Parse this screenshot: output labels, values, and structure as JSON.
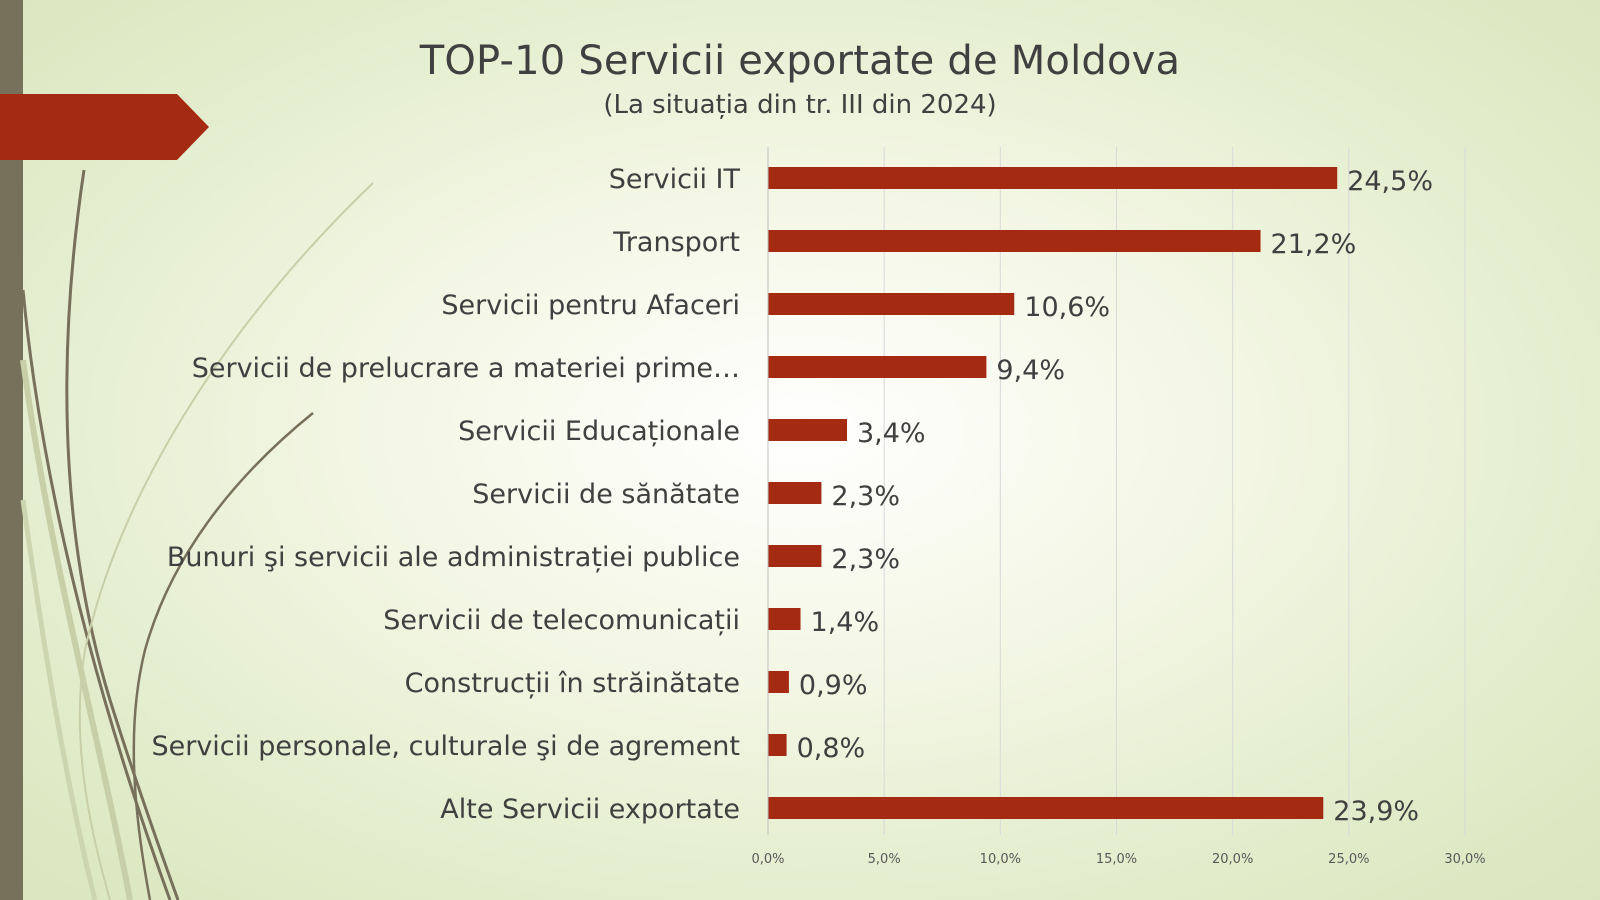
{
  "chart_data": {
    "type": "bar",
    "orientation": "horizontal",
    "title": "TOP-10 Servicii exportate de Moldova",
    "subtitle": "(La situația din tr. III din 2024)",
    "categories": [
      "Servicii IT",
      "Transport",
      "Servicii pentru Afaceri",
      "Servicii de prelucrare a materiei prime…",
      "Servicii Educaționale",
      "Servicii de sănătate",
      "Bunuri şi servicii ale administrației publice",
      "Servicii de telecomunicații",
      "Construcții în străinătate",
      "Servicii personale, culturale şi de agrement",
      "Alte Servicii exportate"
    ],
    "values": [
      24.5,
      21.2,
      10.6,
      9.4,
      3.4,
      2.3,
      2.3,
      1.4,
      0.9,
      0.8,
      23.9
    ],
    "data_labels": [
      "24,5%",
      "21,2%",
      "10,6%",
      "9,4%",
      "3,4%",
      "2,3%",
      "2,3%",
      "1,4%",
      "0,9%",
      "0,8%",
      "23,9%"
    ],
    "xlim": [
      0,
      30
    ],
    "xticks": [
      0,
      5,
      10,
      15,
      20,
      25,
      30
    ],
    "xtick_labels": [
      "0,0%",
      "5,0%",
      "10,0%",
      "15,0%",
      "20,0%",
      "25,0%",
      "30,0%"
    ],
    "grid": "vertical",
    "legend": "none",
    "bar_color": "#a52a12"
  },
  "theme": {
    "accent": "#a52a12",
    "sidebar": "#77705a",
    "text": "#404040",
    "gridline": "#d9d9d9"
  }
}
